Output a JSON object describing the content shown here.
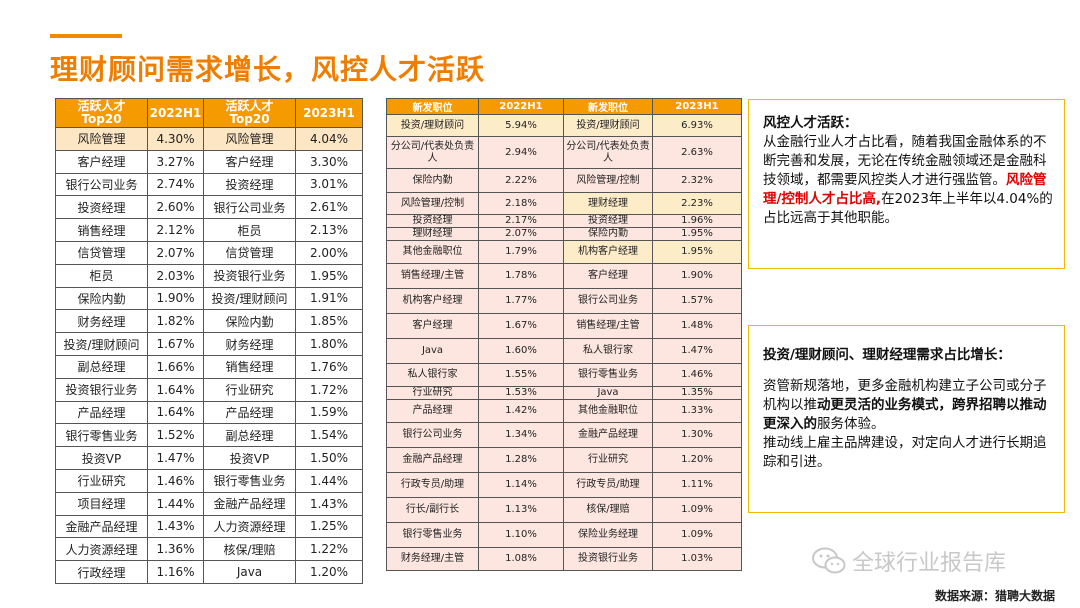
{
  "title": "理财顾问需求增长，风控人才活跃",
  "table1": {
    "headers": [
      "活跃人才\nTop20",
      "2022H1",
      "活跃人才\nTop20",
      "2023H1"
    ],
    "rows": [
      [
        "风险管理",
        "4.30%",
        "风险管理",
        "4.04%"
      ],
      [
        "客户经理",
        "3.27%",
        "客户经理",
        "3.30%"
      ],
      [
        "银行公司业务",
        "2.74%",
        "投资经理",
        "3.01%"
      ],
      [
        "投资经理",
        "2.60%",
        "银行公司业务",
        "2.61%"
      ],
      [
        "销售经理",
        "2.12%",
        "柜员",
        "2.13%"
      ],
      [
        "信贷管理",
        "2.07%",
        "信贷管理",
        "2.00%"
      ],
      [
        "柜员",
        "2.03%",
        "投资银行业务",
        "1.95%"
      ],
      [
        "保险内勤",
        "1.90%",
        "投资/理财顾问",
        "1.91%"
      ],
      [
        "财务经理",
        "1.82%",
        "保险内勤",
        "1.85%"
      ],
      [
        "投资/理财顾问",
        "1.67%",
        "财务经理",
        "1.80%"
      ],
      [
        "副总经理",
        "1.66%",
        "销售经理",
        "1.76%"
      ],
      [
        "投资银行业务",
        "1.64%",
        "行业研究",
        "1.72%"
      ],
      [
        "产品经理",
        "1.64%",
        "产品经理",
        "1.59%"
      ],
      [
        "银行零售业务",
        "1.52%",
        "副总经理",
        "1.54%"
      ],
      [
        "投资VP",
        "1.47%",
        "投资VP",
        "1.50%"
      ],
      [
        "行业研究",
        "1.46%",
        "银行零售业务",
        "1.44%"
      ],
      [
        "项目经理",
        "1.44%",
        "金融产品经理",
        "1.43%"
      ],
      [
        "金融产品经理",
        "1.43%",
        "人力资源经理",
        "1.25%"
      ],
      [
        "人力资源经理",
        "1.36%",
        "核保/理赔",
        "1.22%"
      ],
      [
        "行政经理",
        "1.16%",
        "Java",
        "1.20%"
      ]
    ]
  },
  "table2": {
    "headers": [
      "新发职位",
      "2022H1",
      "新发职位",
      "2023H1"
    ],
    "rows": [
      [
        "投资/理财顾问",
        "5.94%",
        "投资/理财顾问",
        "6.93%"
      ],
      [
        "分公司/代表处负责人",
        "2.94%",
        "分公司/代表处负责人",
        "2.63%"
      ],
      [
        "保险内勤",
        "2.22%",
        "风险管理/控制",
        "2.32%"
      ],
      [
        "风险管理/控制",
        "2.18%",
        "理财经理",
        "2.23%"
      ],
      [
        "投资经理",
        "2.17%",
        "投资经理",
        "1.96%"
      ],
      [
        "理财经理",
        "2.07%",
        "保险内勤",
        "1.95%"
      ],
      [
        "其他金融职位",
        "1.79%",
        "机构客户经理",
        "1.95%"
      ],
      [
        "销售经理/主管",
        "1.78%",
        "客户经理",
        "1.90%"
      ],
      [
        "机构客户经理",
        "1.77%",
        "银行公司业务",
        "1.57%"
      ],
      [
        "客户经理",
        "1.67%",
        "销售经理/主管",
        "1.48%"
      ],
      [
        "Java",
        "1.60%",
        "私人银行家",
        "1.47%"
      ],
      [
        "私人银行家",
        "1.55%",
        "银行零售业务",
        "1.46%"
      ],
      [
        "行业研究",
        "1.53%",
        "Java",
        "1.35%"
      ],
      [
        "产品经理",
        "1.42%",
        "其他金融职位",
        "1.33%"
      ],
      [
        "银行公司业务",
        "1.34%",
        "金融产品经理",
        "1.30%"
      ],
      [
        "金融产品经理",
        "1.28%",
        "行业研究",
        "1.20%"
      ],
      [
        "行政专员/助理",
        "1.14%",
        "行政专员/助理",
        "1.11%"
      ],
      [
        "行长/副行长",
        "1.13%",
        "核保/理赔",
        "1.09%"
      ],
      [
        "银行零售业务",
        "1.10%",
        "保险业务经理",
        "1.09%"
      ],
      [
        "财务经理/主管",
        "1.08%",
        "投资银行业务",
        "1.03%"
      ]
    ]
  },
  "box1": {
    "heading": "风控人才活跃：",
    "text1": "从金融行业人才占比看，随着我国金融体系的不断完善和发展，无论在传统金融领域还是金融科技领域，都需要风控类人才进行强监管。",
    "red": "风险管理/控制人才占比高,",
    "text2": "在2023年上半年以4.04%的占比远高于其他职能。"
  },
  "box2": {
    "heading": "投资/理财顾问、理财经理需求占比增长：",
    "p1a": "资管新规落地，更多金融机构建立子公司或分子机构以推",
    "p1b": "动更灵活的业务模式，跨界招聘以推动更深入的",
    "p1c": "服务体验。",
    "p2": "推动线上雇主品牌建设，对定向人才进行长期追踪和引进。"
  },
  "watermark": "全球行业报告库",
  "source": "数据来源：猎聘大数据",
  "colors": {
    "accent": "#ef7d00",
    "header": "#f59a00",
    "highlight_red": "#e00000",
    "box_border": "#f5b800"
  }
}
